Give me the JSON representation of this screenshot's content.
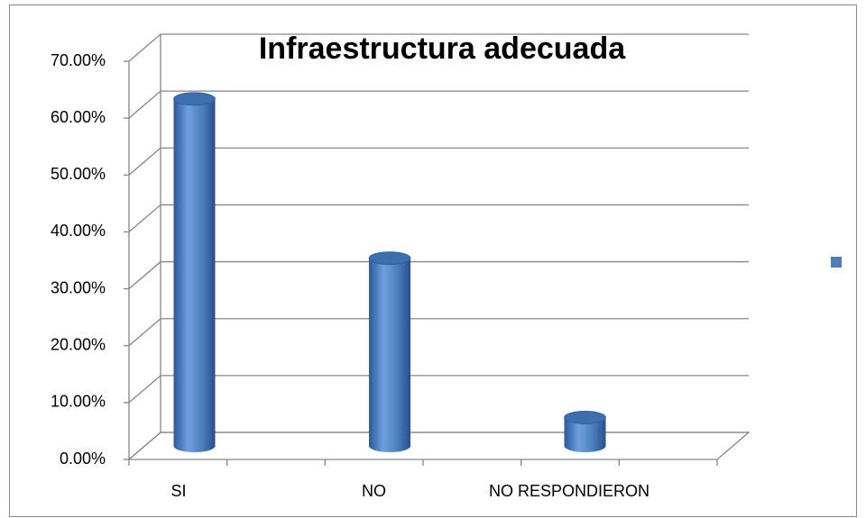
{
  "chart_data": {
    "type": "bar",
    "title": "Infraestructura  adecuada",
    "categories": [
      "SI",
      "NO",
      "NO RESPONDIERON"
    ],
    "values": [
      61,
      33,
      5
    ],
    "color": "#4a7ebb",
    "ylim": [
      0,
      70
    ],
    "yticks": [
      {
        "value": 0,
        "label": "0.00%"
      },
      {
        "value": 10,
        "label": "10.00%"
      },
      {
        "value": 20,
        "label": "20.00%"
      },
      {
        "value": 30,
        "label": "30.00%"
      },
      {
        "value": 40,
        "label": "40.00%"
      },
      {
        "value": 50,
        "label": "50.00%"
      },
      {
        "value": 60,
        "label": "60.00%"
      },
      {
        "value": 70,
        "label": "70.00%"
      }
    ],
    "grid": true
  }
}
